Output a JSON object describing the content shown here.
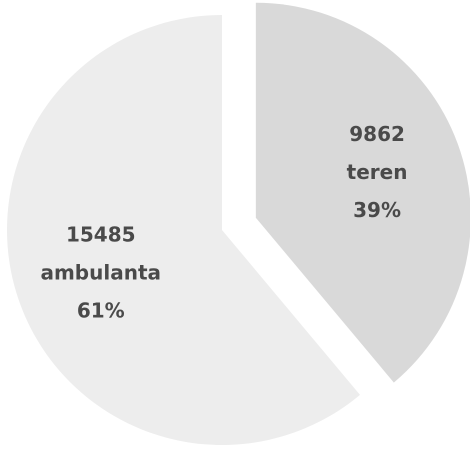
{
  "chart_data": {
    "type": "pie",
    "categories": [
      "ambulanta",
      "teren"
    ],
    "values": [
      15485,
      9862
    ],
    "percent_labels": [
      "61%",
      "39%"
    ],
    "colors": [
      "#ededed",
      "#d9d9d9"
    ],
    "exploded": [
      false,
      true
    ],
    "start_angle": 0,
    "direction": "counterclockwise"
  }
}
